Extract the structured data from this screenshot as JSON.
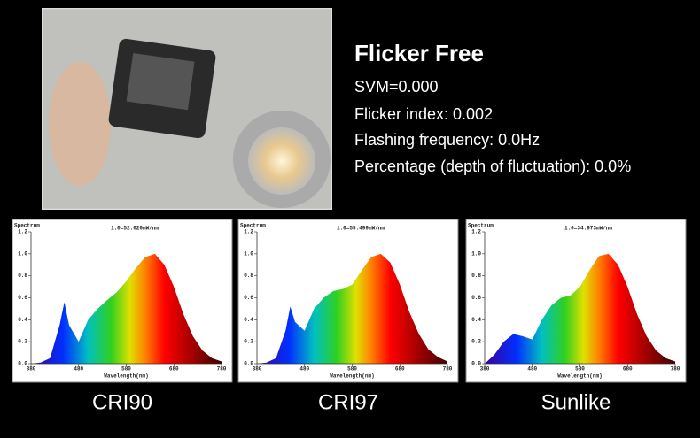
{
  "header": {
    "title": "Flicker Free"
  },
  "specs": [
    "SVM=0.000",
    "Flicker index: 0.002",
    "Flashing frequency: 0.0Hz",
    "Percentage (depth of fluctuation): 0.0%"
  ],
  "spectra": [
    {
      "type": "area",
      "label": "CRI90",
      "ylabel": "Spectrum",
      "note": "1.0=52.020mW/nm",
      "xlabel": "Wavelength(nm)",
      "xlim": [
        380,
        780
      ],
      "xticks": [
        380,
        480,
        580,
        680,
        780
      ],
      "ylim": [
        0,
        1.2
      ],
      "yticks": [
        {
          "value": 0,
          "label": "0.0"
        },
        {
          "value": 0.2,
          "label": "0.2"
        },
        {
          "value": 0.4,
          "label": "0.4"
        },
        {
          "value": 0.6,
          "label": "0.6"
        },
        {
          "value": 0.8,
          "label": "0.8"
        },
        {
          "value": 1,
          "label": "1.0"
        },
        {
          "value": 1.2,
          "label": "1.2"
        }
      ],
      "x": [
        380,
        400,
        420,
        440,
        450,
        460,
        480,
        500,
        520,
        540,
        560,
        580,
        600,
        620,
        640,
        660,
        680,
        700,
        720,
        740,
        760,
        780
      ],
      "values": [
        0,
        0.01,
        0.05,
        0.35,
        0.56,
        0.35,
        0.2,
        0.4,
        0.5,
        0.58,
        0.65,
        0.75,
        0.87,
        0.97,
        1.0,
        0.9,
        0.7,
        0.45,
        0.25,
        0.12,
        0.05,
        0.02
      ]
    },
    {
      "type": "area",
      "label": "CRI97",
      "ylabel": "Spectrum",
      "note": "1.0=55.499mW/nm",
      "xlabel": "Wavelength(nm)",
      "xlim": [
        380,
        780
      ],
      "xticks": [
        380,
        480,
        580,
        680,
        780
      ],
      "ylim": [
        0,
        1.2
      ],
      "yticks": [
        {
          "value": 0,
          "label": "0.0"
        },
        {
          "value": 0.2,
          "label": "0.2"
        },
        {
          "value": 0.4,
          "label": "0.4"
        },
        {
          "value": 0.6,
          "label": "0.6"
        },
        {
          "value": 0.8,
          "label": "0.8"
        },
        {
          "value": 1,
          "label": "1.0"
        },
        {
          "value": 1.2,
          "label": "1.2"
        }
      ],
      "x": [
        380,
        400,
        420,
        440,
        450,
        460,
        480,
        500,
        520,
        540,
        560,
        580,
        600,
        620,
        640,
        660,
        680,
        700,
        720,
        740,
        760,
        780
      ],
      "values": [
        0,
        0.01,
        0.05,
        0.3,
        0.52,
        0.38,
        0.3,
        0.5,
        0.6,
        0.66,
        0.68,
        0.72,
        0.85,
        0.97,
        1.0,
        0.92,
        0.72,
        0.47,
        0.27,
        0.13,
        0.06,
        0.02
      ]
    },
    {
      "type": "area",
      "label": "Sunlike",
      "ylabel": "Spectrum",
      "note": "1.0=34.973mW/nm",
      "xlabel": "Wavelength(nm)",
      "xlim": [
        380,
        780
      ],
      "xticks": [
        380,
        480,
        580,
        680,
        780
      ],
      "ylim": [
        0,
        1.2
      ],
      "yticks": [
        {
          "value": 0,
          "label": "0.0"
        },
        {
          "value": 0.2,
          "label": "0.2"
        },
        {
          "value": 0.4,
          "label": "0.4"
        },
        {
          "value": 0.6,
          "label": "0.6"
        },
        {
          "value": 0.8,
          "label": "0.8"
        },
        {
          "value": 1,
          "label": "1.0"
        },
        {
          "value": 1.2,
          "label": "1.2"
        }
      ],
      "x": [
        380,
        400,
        420,
        440,
        450,
        460,
        480,
        500,
        520,
        540,
        560,
        580,
        600,
        620,
        640,
        660,
        680,
        700,
        720,
        740,
        760,
        780
      ],
      "values": [
        0,
        0.08,
        0.2,
        0.27,
        0.26,
        0.25,
        0.22,
        0.4,
        0.53,
        0.6,
        0.62,
        0.7,
        0.85,
        0.98,
        1.0,
        0.9,
        0.7,
        0.45,
        0.25,
        0.12,
        0.05,
        0.02
      ]
    }
  ]
}
